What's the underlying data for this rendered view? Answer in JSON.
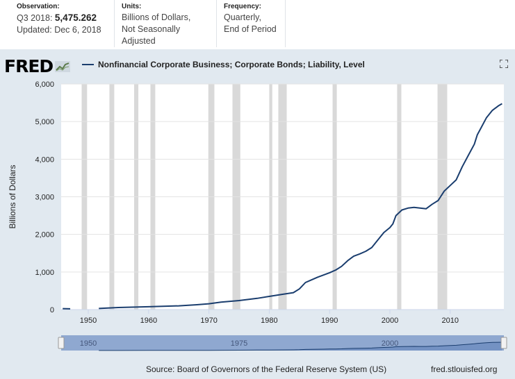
{
  "header": {
    "observation_label": "Observation:",
    "observation_period": "Q3 2018:",
    "observation_value": "5,475.262",
    "updated": "Updated: Dec 6, 2018",
    "units_label": "Units:",
    "units_line1": "Billions of Dollars,",
    "units_line2": "Not Seasonally Adjusted",
    "frequency_label": "Frequency:",
    "frequency_line1": "Quarterly,",
    "frequency_line2": "End of Period"
  },
  "brand": {
    "name": "FRED"
  },
  "source": "Source: Board of Governors of the Federal Reserve System (US)",
  "site": "fred.stlouisfed.org",
  "colors": {
    "line": "#1a3d6e",
    "recession": "#d9d9d9",
    "panel": "#e1e9f0",
    "navigator": "#8fa8d0"
  },
  "chart_data": {
    "type": "line",
    "title": "Nonfinancial Corporate Business; Corporate Bonds; Liability, Level",
    "ylabel": "Billions of Dollars",
    "xlabel": "",
    "xlim": [
      1945.5,
      2018.9
    ],
    "ylim": [
      0,
      6000
    ],
    "y_ticks": [
      0,
      1000,
      2000,
      3000,
      4000,
      5000,
      6000
    ],
    "y_tick_labels": [
      "0",
      "1,000",
      "2,000",
      "3,000",
      "4,000",
      "5,000",
      "6,000"
    ],
    "x_ticks": [
      1950,
      1960,
      1970,
      1980,
      1990,
      2000,
      2010
    ],
    "x_tick_labels": [
      "1950",
      "1960",
      "1970",
      "1980",
      "1990",
      "2000",
      "2010"
    ],
    "recessions": [
      [
        1948.9,
        1949.8
      ],
      [
        1953.5,
        1954.3
      ],
      [
        1957.6,
        1958.3
      ],
      [
        1960.3,
        1961.1
      ],
      [
        1969.9,
        1970.9
      ],
      [
        1973.9,
        1975.2
      ],
      [
        1980.0,
        1980.5
      ],
      [
        1981.5,
        1982.9
      ],
      [
        1990.5,
        1991.2
      ],
      [
        2001.2,
        2001.9
      ],
      [
        2007.9,
        2009.5
      ]
    ],
    "series": [
      {
        "name": "Nonfinancial Corporate Business; Corporate Bonds; Liability, Level",
        "segments": [
          {
            "x": [
              1945.75,
              1947.0
            ],
            "y": [
              25,
              20
            ]
          },
          {
            "x": [
              1951.75,
              1955,
              1960,
              1965,
              1968,
              1970,
              1972,
              1975,
              1978,
              1980,
              1982,
              1984,
              1985,
              1986,
              1987,
              1988,
              1989,
              1990,
              1991,
              1992,
              1993,
              1994,
              1995,
              1996,
              1997,
              1998,
              1999,
              2000,
              2000.5,
              2001,
              2002,
              2003,
              2004,
              2005,
              2006,
              2007,
              2008,
              2009,
              2010,
              2011,
              2012,
              2013,
              2014,
              2014.5,
              2015,
              2016,
              2017,
              2018,
              2018.6
            ],
            "y": [
              30,
              55,
              75,
              100,
              130,
              155,
              200,
              240,
              300,
              350,
              400,
              450,
              550,
              720,
              790,
              860,
              920,
              980,
              1050,
              1150,
              1300,
              1420,
              1480,
              1550,
              1650,
              1850,
              2050,
              2180,
              2280,
              2500,
              2650,
              2700,
              2720,
              2700,
              2680,
              2800,
              2900,
              3150,
              3300,
              3450,
              3800,
              4100,
              4400,
              4650,
              4800,
              5100,
              5300,
              5420,
              5475
            ]
          }
        ]
      }
    ],
    "navigator_ticks": [
      1950,
      1975,
      2000
    ],
    "navigator_tick_labels": [
      "1950",
      "1975",
      "2000"
    ]
  }
}
